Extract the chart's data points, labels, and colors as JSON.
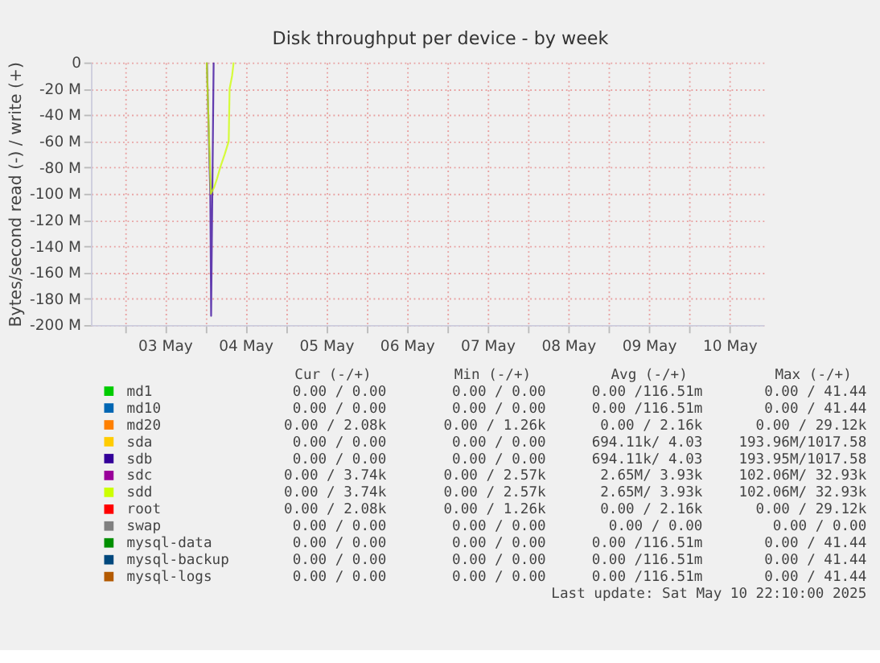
{
  "chart_data": {
    "type": "line",
    "title": "Disk throughput per device - by week",
    "ylabel": "Bytes/second read (-) / write (+)",
    "xlim": [
      "2025-05-02T14:00",
      "2025-05-10T22:10"
    ],
    "xticks": [
      {
        "value": "2025-05-03T00:00",
        "label": null
      },
      {
        "value": "2025-05-03T12:00",
        "label": "03 May"
      },
      {
        "value": "2025-05-04T00:00",
        "label": null
      },
      {
        "value": "2025-05-04T12:00",
        "label": "04 May"
      },
      {
        "value": "2025-05-05T00:00",
        "label": null
      },
      {
        "value": "2025-05-05T12:00",
        "label": "05 May"
      },
      {
        "value": "2025-05-06T00:00",
        "label": null
      },
      {
        "value": "2025-05-06T12:00",
        "label": "06 May"
      },
      {
        "value": "2025-05-07T00:00",
        "label": null
      },
      {
        "value": "2025-05-07T12:00",
        "label": "07 May"
      },
      {
        "value": "2025-05-08T00:00",
        "label": null
      },
      {
        "value": "2025-05-08T12:00",
        "label": "08 May"
      },
      {
        "value": "2025-05-09T00:00",
        "label": null
      },
      {
        "value": "2025-05-09T12:00",
        "label": "09 May"
      },
      {
        "value": "2025-05-10T00:00",
        "label": null
      },
      {
        "value": "2025-05-10T12:00",
        "label": "10 May"
      }
    ],
    "ylim": [
      -200,
      0
    ],
    "yticks": [
      {
        "value": -200,
        "label": "-200 M"
      },
      {
        "value": -180,
        "label": "-180 M"
      },
      {
        "value": -160,
        "label": "-160 M"
      },
      {
        "value": -140,
        "label": "-140 M"
      },
      {
        "value": -120,
        "label": "-120 M"
      },
      {
        "value": -100,
        "label": "-100 M"
      },
      {
        "value": -80,
        "label": "-80 M"
      },
      {
        "value": -60,
        "label": "-60 M"
      },
      {
        "value": -40,
        "label": "-40 M"
      },
      {
        "value": -20,
        "label": "-20 M"
      },
      0
    ],
    "grid": true,
    "legend": "bottom",
    "series": [
      {
        "name": "md1",
        "color": "#00cc00"
      },
      {
        "name": "md10",
        "color": "#0066b3"
      },
      {
        "name": "md20",
        "color": "#ff8000"
      },
      {
        "name": "sda",
        "color": "#ffcc00"
      },
      {
        "name": "sdb",
        "color": "#330099",
        "x": [
          "2025-05-04T00:30",
          "2025-05-04T01:30",
          "2025-05-04T01:45",
          "2025-05-04T02:30"
        ],
        "values": [
          0,
          -100,
          -193,
          0
        ]
      },
      {
        "name": "sdc",
        "color": "#990099"
      },
      {
        "name": "sdd",
        "color": "#ccff00",
        "x": [
          "2025-05-04T00:27",
          "2025-05-04T01:39",
          "2025-05-04T02:40",
          "2025-05-04T03:34",
          "2025-05-04T04:27",
          "2025-05-04T05:47",
          "2025-05-04T06:59",
          "2025-05-04T07:15",
          "2025-05-04T08:00",
          "2025-05-04T08:27"
        ],
        "values": [
          0,
          -100,
          -95,
          -88,
          -80,
          -70,
          -60,
          -20,
          -10,
          0
        ]
      },
      {
        "name": "root",
        "color": "#ff0000"
      },
      {
        "name": "swap",
        "color": "#808080"
      },
      {
        "name": "mysql-data",
        "color": "#008f00"
      },
      {
        "name": "mysql-backup",
        "color": "#00487d"
      },
      {
        "name": "mysql-logs",
        "color": "#b35a00"
      }
    ],
    "annotations": [
      "Cur (-/+)",
      "Min (-/+)",
      "Avg (-/+)",
      "Max (-/+)",
      "0.00 /   0.00",
      "0.00 /   0.00",
      "0.00 /116.51m",
      "0.00 / 41.44",
      "0.00 /   0.00",
      "0.00 /   0.00",
      "0.00 /116.51m",
      "0.00 / 41.44",
      "0.00 /  2.08k",
      "0.00 /  1.26k",
      "0.00 /  2.16k",
      "0.00 / 29.12k",
      "0.00 /   0.00",
      "0.00 /   0.00",
      "694.11k/   4.03",
      "193.96M/1017.58",
      "0.00 /   0.00",
      "0.00 /   0.00",
      "694.11k/   4.03",
      "193.95M/1017.58",
      "0.00 /  3.74k",
      "0.00 /  2.57k",
      "2.65M/  3.93k",
      "102.06M/ 32.93k",
      "0.00 /  3.74k",
      "0.00 /  2.57k",
      "2.65M/  3.93k",
      "102.06M/ 32.93k",
      "0.00 /  2.08k",
      "0.00 /  1.26k",
      "0.00 /  2.16k",
      "0.00 / 29.12k",
      "0.00 /   0.00",
      "0.00 /   0.00",
      "0.00 /   0.00",
      "0.00 /   0.00",
      "0.00 /   0.00",
      "0.00 /   0.00",
      "0.00 /116.51m",
      "0.00 / 41.44",
      "0.00 /   0.00",
      "0.00 /   0.00",
      "0.00 /116.51m",
      "0.00 / 41.44",
      "0.00 /   0.00",
      "0.00 /   0.00",
      "0.00 /116.51m",
      "0.00 / 41.44",
      "Last update:  Sat May 10 22:10:00 2025"
    ]
  }
}
